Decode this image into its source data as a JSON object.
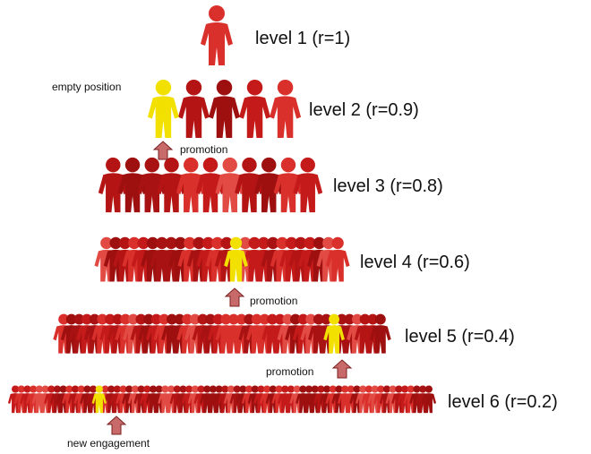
{
  "levels": [
    "level 1 (r=1)",
    "level 2 (r=0.9)",
    "level 3 (r=0.8)",
    "level 4 (r=0.6)",
    "level 5 (r=0.4)",
    "level 6 (r=0.2)"
  ],
  "annotations": {
    "empty_position": "empty position",
    "promotions": [
      "promotion",
      "promotion",
      "promotion"
    ],
    "new_engagement": "new engagement"
  }
}
